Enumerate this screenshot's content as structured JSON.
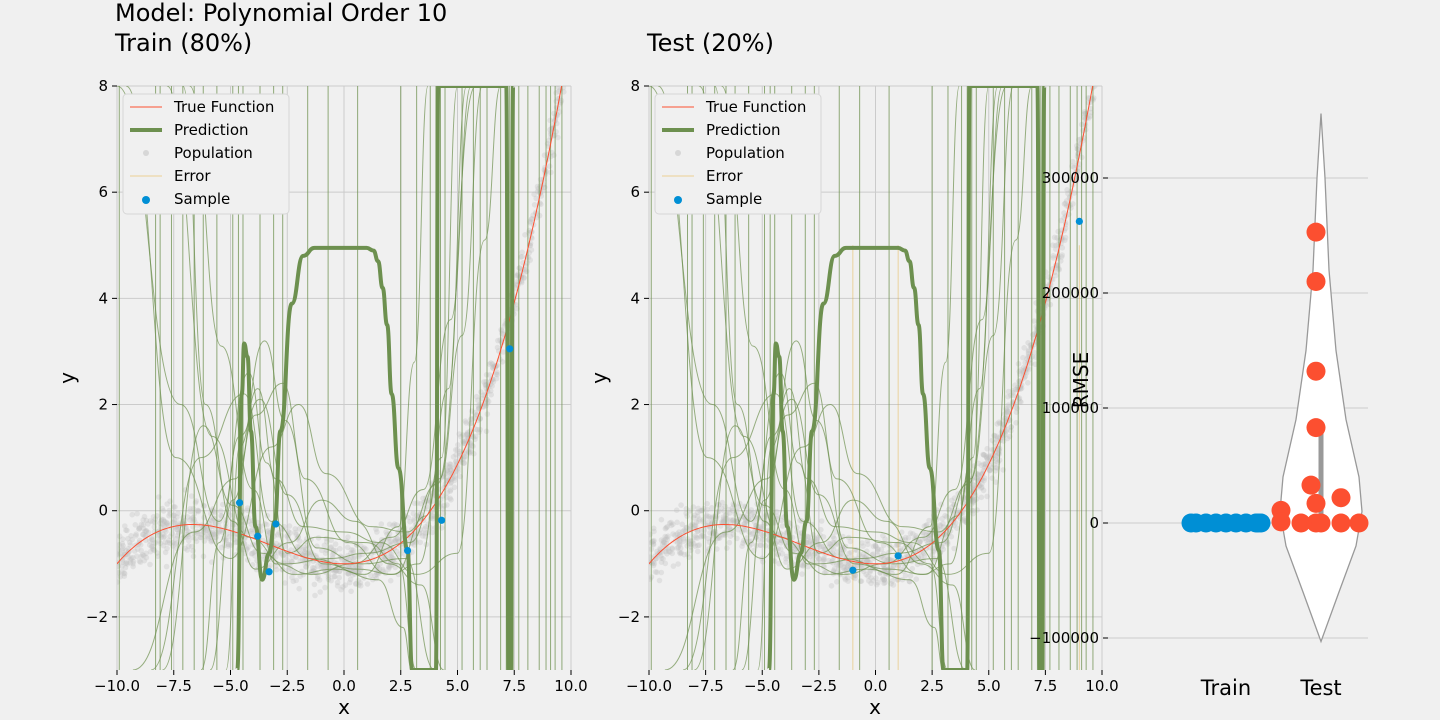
{
  "chart_data": [
    {
      "type": "line",
      "panel": "train",
      "title": "Model: Polynomial Order 10",
      "subtitle": "Train (80%)",
      "xlabel": "x",
      "ylabel": "y",
      "xlim": [
        -10,
        10
      ],
      "ylim": [
        -3,
        8
      ],
      "xticks": [
        -10,
        -7.5,
        -5,
        -2.5,
        0,
        2.5,
        5,
        7.5,
        10
      ],
      "xtick_labels": [
        "−10.0",
        "−7.5",
        "−5.0",
        "−2.5",
        "0.0",
        "2.5",
        "5.0",
        "7.5",
        "10.0"
      ],
      "yticks": [
        -2,
        0,
        2,
        4,
        6,
        8
      ],
      "ytick_labels": [
        "−2",
        "0",
        "2",
        "4",
        "6",
        "8"
      ],
      "grid": true,
      "legend_position": "top-left",
      "legend": [
        "True Function",
        "Prediction",
        "Population",
        "Error",
        "Sample"
      ],
      "sample_x": [
        -4.6,
        -3.8,
        -3.3,
        -3.0,
        2.8,
        4.3,
        7.3
      ],
      "sample_y": [
        0.15,
        -0.48,
        -1.15,
        -0.25,
        -0.75,
        -0.18,
        3.05
      ],
      "prediction_x": [
        -4.7,
        -4.5,
        -4.4,
        -4.25,
        -4.1,
        -3.9,
        -3.6,
        -3.3,
        -3.05,
        -2.8,
        -2.3,
        -1.8,
        -1.3,
        -0.9,
        -0.5,
        0.0,
        0.5,
        1.0,
        1.3,
        1.5,
        1.7,
        1.9,
        2.1,
        2.4,
        2.8,
        3.0,
        3.4,
        3.8,
        4.05,
        4.15,
        4.25,
        4.35,
        4.55,
        7.15,
        7.25,
        7.35,
        7.45
      ],
      "prediction_y": [
        -3.0,
        2.2,
        3.15,
        2.9,
        1.5,
        -0.3,
        -1.3,
        -0.8,
        -0.2,
        1.5,
        3.9,
        4.8,
        4.95,
        4.95,
        4.95,
        4.95,
        4.95,
        4.95,
        4.9,
        4.7,
        4.2,
        3.5,
        2.2,
        0.8,
        -0.75,
        -3.0,
        -3.0,
        -3.0,
        -3.0,
        8.0,
        8.0,
        8.0,
        8.0,
        8.0,
        -3.0,
        -3.0,
        8.0
      ],
      "true_function": "0.005*x^3 + 0.05*x^2 - 1"
    },
    {
      "type": "line",
      "panel": "test",
      "title": "Test (20%)",
      "xlabel": "x",
      "ylabel": "y",
      "xlim": [
        -10,
        10
      ],
      "ylim": [
        -3,
        8
      ],
      "xticks": [
        -10,
        -7.5,
        -5,
        -2.5,
        0,
        2.5,
        5,
        7.5,
        10
      ],
      "xtick_labels": [
        "−10.0",
        "−7.5",
        "−5.0",
        "−2.5",
        "0.0",
        "2.5",
        "5.0",
        "7.5",
        "10.0"
      ],
      "yticks": [
        -2,
        0,
        2,
        4,
        6,
        8
      ],
      "ytick_labels": [
        "−2",
        "0",
        "2",
        "4",
        "6",
        "8"
      ],
      "grid": true,
      "legend_position": "top-left",
      "legend": [
        "True Function",
        "Prediction",
        "Population",
        "Error",
        "Sample"
      ],
      "sample_x": [
        -1.0,
        1.0,
        9.0
      ],
      "sample_y": [
        -1.12,
        -0.85,
        5.45
      ],
      "error_x": [
        -1.0,
        1.0,
        9.0
      ]
    },
    {
      "type": "scatter",
      "panel": "rmse",
      "ylabel": "RMSE",
      "categories": [
        "Train",
        "Test"
      ],
      "ylim": [
        -120000,
        370000
      ],
      "yticks": [
        -100000,
        0,
        100000,
        200000,
        300000
      ],
      "ytick_labels": [
        "−100000",
        "0",
        "100000",
        "200000",
        "300000"
      ],
      "grid": true,
      "series": [
        {
          "category": "Train",
          "color": "#008fd5",
          "values": [
            0,
            0,
            0,
            0,
            0,
            0,
            0,
            0,
            0,
            0
          ],
          "offsets": [
            -0.35,
            -0.3,
            -0.2,
            -0.1,
            0.0,
            0.1,
            0.2,
            0.3,
            0.35,
            0.32
          ]
        },
        {
          "category": "Test",
          "color": "#fc4f30",
          "values": [
            253000,
            210000,
            132000,
            83000,
            33000,
            22000,
            17000,
            11000,
            1000,
            0,
            0,
            0,
            0,
            0
          ],
          "offsets": [
            -0.05,
            -0.05,
            -0.05,
            -0.05,
            -0.1,
            0.2,
            -0.05,
            -0.4,
            -0.4,
            -0.2,
            -0.05,
            0.2,
            0.38,
            0.0
          ]
        }
      ],
      "violin": {
        "category": "Test",
        "min": -103000,
        "max": 356000
      }
    }
  ],
  "colors": {
    "background": "#f0f0f0",
    "grid": "#cbcbcb",
    "true_function": "#fc4f30",
    "prediction": "#6d904f",
    "population": "#bdbdbd",
    "error": "#e5ae38",
    "sample": "#008fd5",
    "train_rmse": "#008fd5",
    "test_rmse": "#fc4f30"
  }
}
